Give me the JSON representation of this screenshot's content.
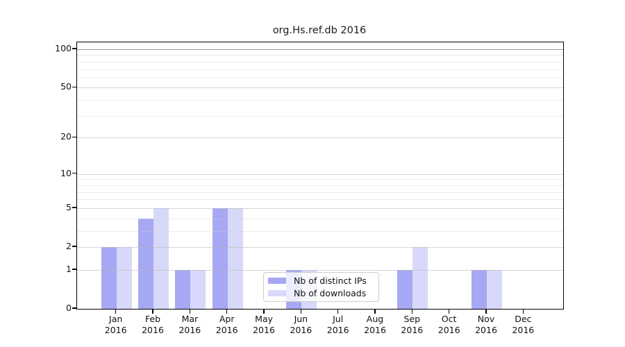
{
  "chart_data": {
    "type": "bar",
    "title": "org.Hs.ref.db 2016",
    "categories": [
      "Jan",
      "Feb",
      "Mar",
      "Apr",
      "May",
      "Jun",
      "Jul",
      "Aug",
      "Sep",
      "Oct",
      "Nov",
      "Dec"
    ],
    "category_year": "2016",
    "series": [
      {
        "name": "Nb of distinct IPs",
        "color": "#a7a8f3",
        "values": [
          2,
          4,
          1,
          5,
          0,
          1,
          0,
          0,
          1,
          0,
          1,
          0
        ]
      },
      {
        "name": "Nb of downloads",
        "color": "#d8d9fa",
        "values": [
          2,
          5,
          1,
          5,
          0,
          1,
          0,
          0,
          2,
          0,
          1,
          0
        ]
      }
    ],
    "yscale": "log1p",
    "ylim": [
      0,
      113
    ],
    "y_major_ticks": [
      0,
      1,
      2,
      5,
      10,
      20,
      50,
      100
    ],
    "y_minor_gridlines": [
      3,
      4,
      6,
      7,
      8,
      9,
      30,
      40,
      60,
      70,
      80,
      90
    ],
    "grid": "horizontal, drawn above bars",
    "legend_position": "lower center inside plot"
  },
  "colors": {
    "distinct_ips_bar": "#a7a8f3",
    "downloads_bar": "#d8d9fa",
    "legend_border": "#cccccc",
    "axis": "#000000"
  }
}
